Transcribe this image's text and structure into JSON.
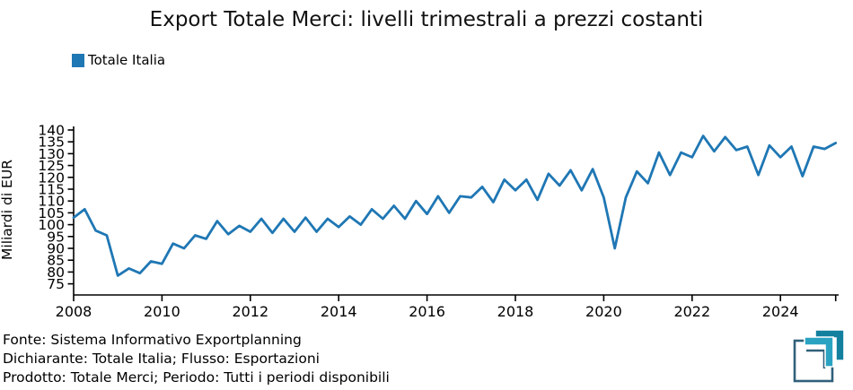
{
  "title": "Export Totale Merci: livelli trimestrali a prezzi costanti",
  "legend": {
    "label": "Totale Italia",
    "color": "#1f77b4"
  },
  "footer": {
    "lines": [
      "Fonte: Sistema Informativo Exportplanning",
      "Dichiarante: Totale Italia; Flusso: Esportazioni",
      "Prodotto: Totale Merci; Periodo: Tutti i periodi disponibili"
    ]
  },
  "logo": {
    "name": "exportplanning-logo",
    "outline_color": "#30607a",
    "teal_dark": "#13809f",
    "teal_light": "#2aa3c2"
  },
  "chart_data": {
    "type": "line",
    "title": "Export Totale Merci: livelli trimestrali a prezzi costanti",
    "xlabel": "",
    "ylabel": "Miliardi di EUR",
    "grid": false,
    "legend_position": "top-left",
    "x_unit": "quarter",
    "x_ticks": [
      2008,
      2010,
      2012,
      2014,
      2016,
      2018,
      2020,
      2022,
      2024
    ],
    "y_ticks": [
      75,
      80,
      85,
      90,
      95,
      100,
      105,
      110,
      115,
      120,
      125,
      130,
      135,
      140
    ],
    "xlim": [
      2008.0,
      2025.35
    ],
    "ylim": [
      70,
      142.5
    ],
    "series": [
      {
        "name": "Totale Italia",
        "color": "#1f77b4",
        "x_start": 2008.0,
        "x_step": 0.25,
        "first_period": "2008-Q1",
        "last_period": "2025-Q2",
        "values": [
          103,
          106.5,
          97.5,
          95.5,
          78.5,
          81.5,
          79.5,
          84.5,
          83.5,
          92,
          90,
          95.5,
          94,
          101.5,
          96,
          99.5,
          97,
          102.5,
          96.5,
          102.5,
          97,
          103,
          97,
          102.5,
          99,
          103.5,
          100,
          106.5,
          102.5,
          108,
          102.5,
          110,
          104.5,
          112,
          105,
          112,
          111.5,
          116,
          109.5,
          119,
          114.5,
          119,
          110.5,
          121.5,
          116.5,
          123,
          114.5,
          123.5,
          111.5,
          90,
          111.5,
          122.5,
          117.5,
          130.5,
          121,
          130.5,
          128.5,
          137.5,
          131,
          137,
          131.5,
          133,
          121,
          133.5,
          128.5,
          133,
          120.5,
          133,
          132,
          134.5
        ]
      }
    ]
  }
}
